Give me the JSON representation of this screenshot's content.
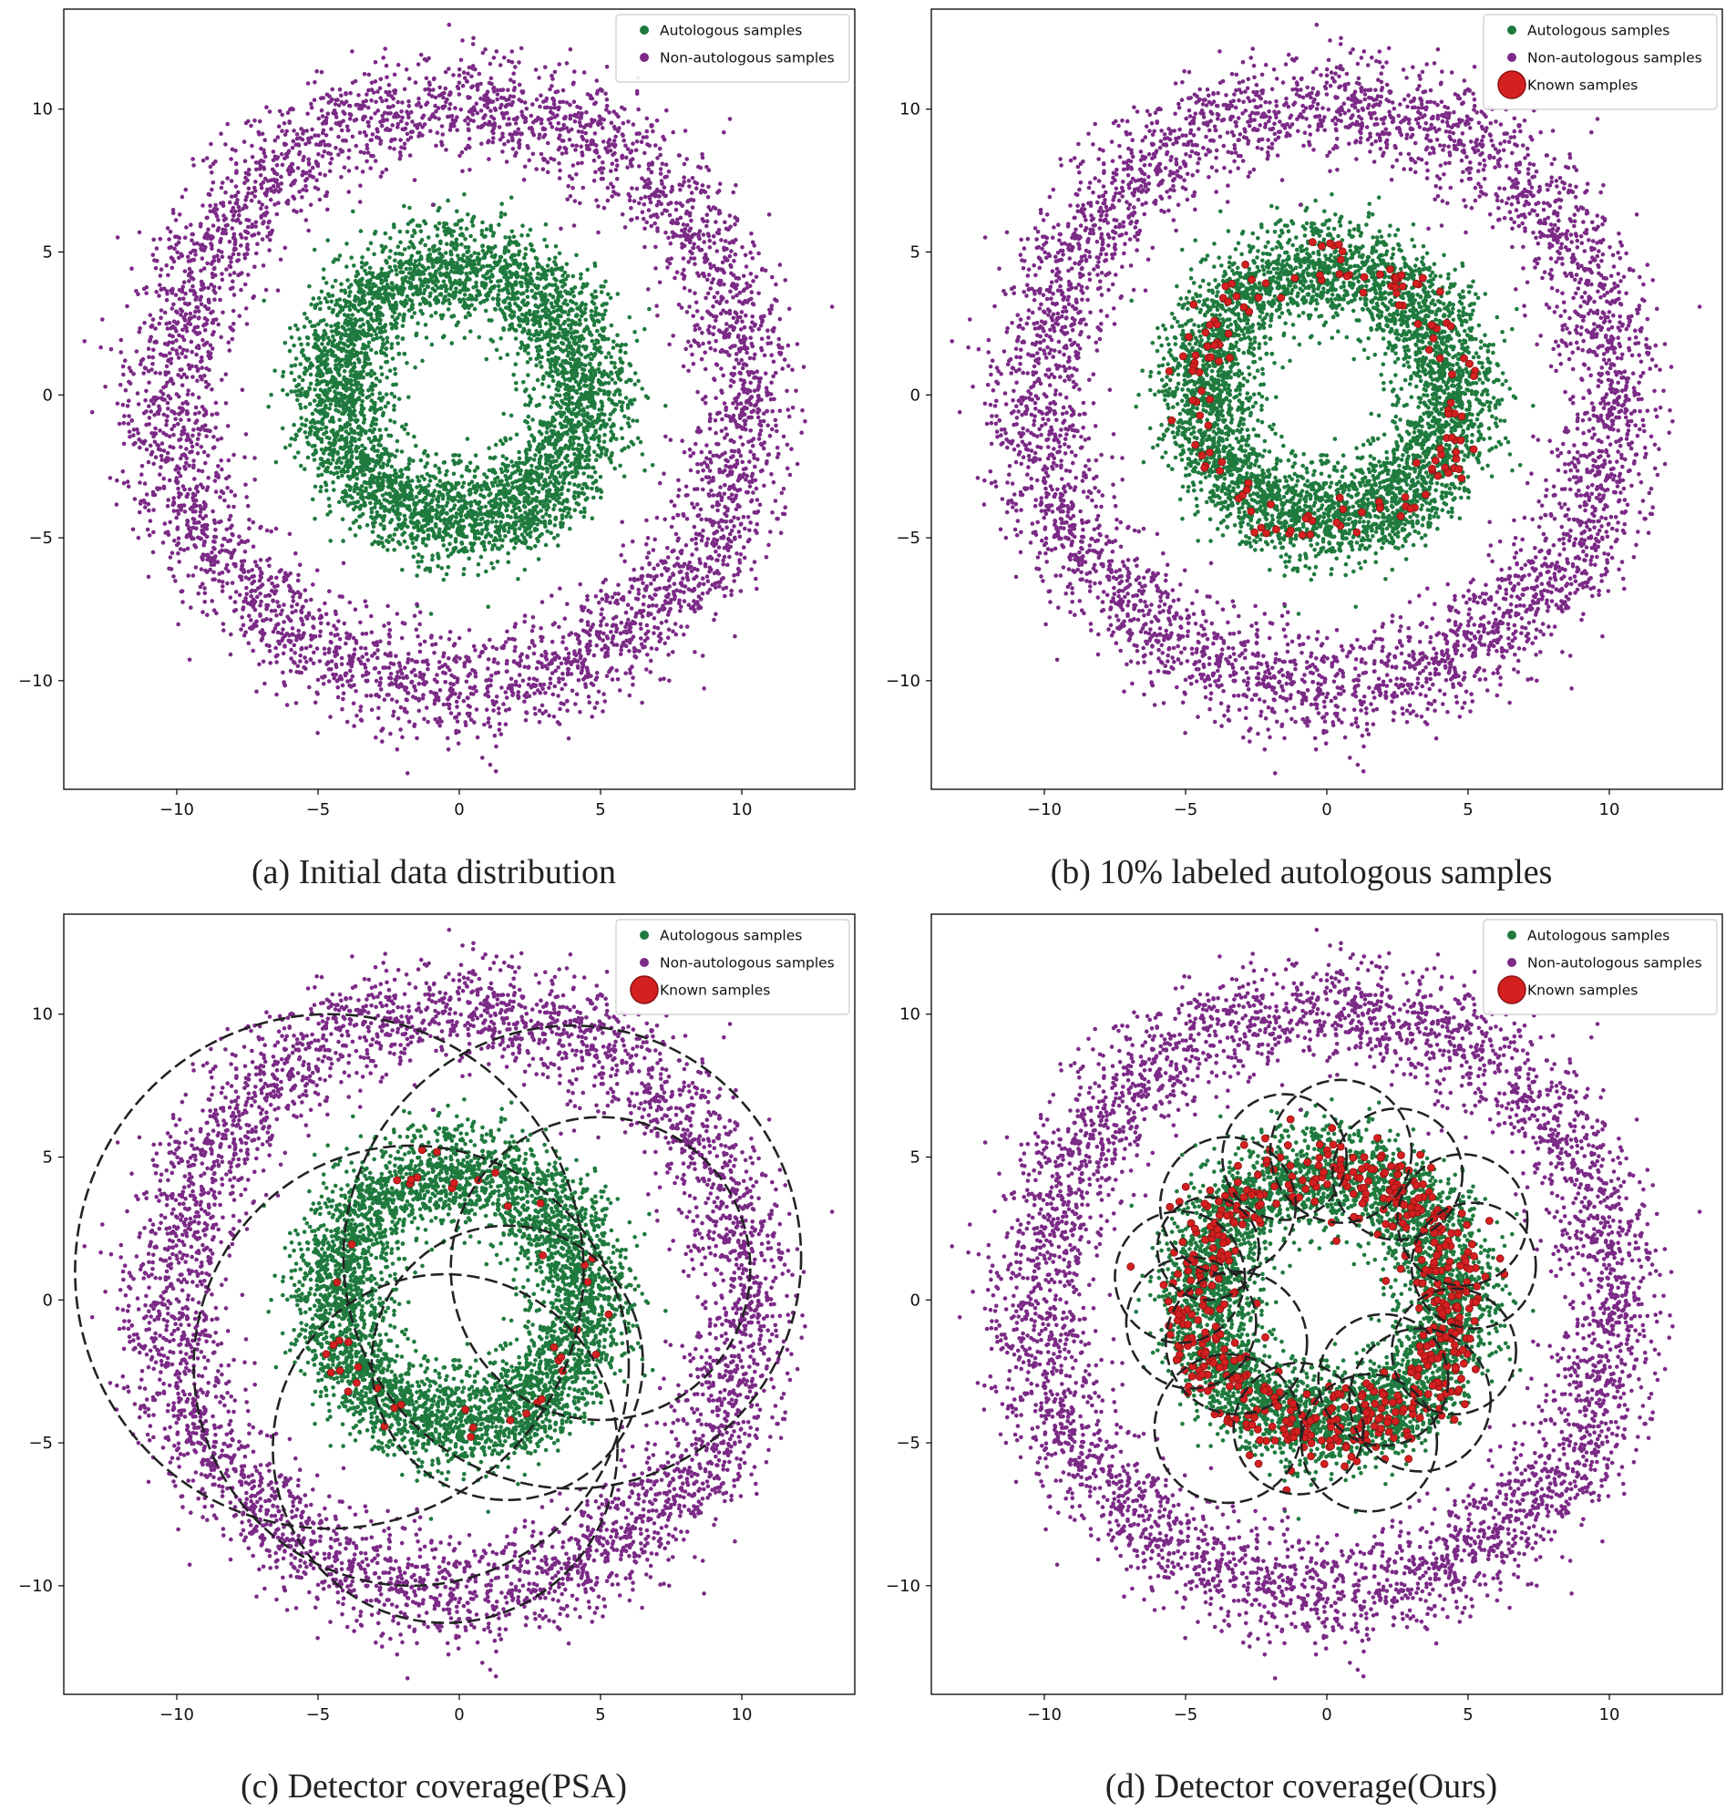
{
  "colors": {
    "autologous": "#1f7a3e",
    "nonautologous": "#7b2a86",
    "known": "#d42020",
    "known_edge": "#8a1010",
    "detector": "#222222",
    "axes": "#000000"
  },
  "chart_data": [
    {
      "type": "scatter",
      "panel": "a",
      "caption": "(a) Initial data distribution",
      "xlim": [
        -14,
        14
      ],
      "ylim": [
        -13.8,
        13.5
      ],
      "xticks": [
        -10,
        -5,
        0,
        5,
        10
      ],
      "xtick_labels": [
        "−10",
        "−5",
        "0",
        "5",
        "10"
      ],
      "yticks": [
        -10,
        -5,
        0,
        5,
        10
      ],
      "ytick_labels": [
        "−10",
        "−5",
        "0",
        "5",
        "10"
      ],
      "legend": [
        "Autologous samples",
        "Non-autologous samples"
      ],
      "legend_position": "top-right",
      "series": [
        {
          "name": "Autologous samples",
          "distribution": "ring",
          "center": [
            0,
            0
          ],
          "radius_mean": 4.5,
          "radius_sd": 0.9,
          "count": 4500
        },
        {
          "name": "Non-autologous samples",
          "distribution": "ring",
          "center": [
            0,
            0
          ],
          "radius_mean": 10.2,
          "radius_sd": 0.95,
          "count": 4500
        }
      ]
    },
    {
      "type": "scatter",
      "panel": "b",
      "caption": "(b) 10% labeled autologous samples",
      "xlim": [
        -14,
        14
      ],
      "ylim": [
        -13.8,
        13.5
      ],
      "xticks": [
        -10,
        -5,
        0,
        5,
        10
      ],
      "xtick_labels": [
        "−10",
        "−5",
        "0",
        "5",
        "10"
      ],
      "yticks": [
        -10,
        -5,
        0,
        5,
        10
      ],
      "ytick_labels": [
        "−10",
        "−5",
        "0",
        "5",
        "10"
      ],
      "legend": [
        "Autologous samples",
        "Non-autologous samples",
        "Known samples"
      ],
      "legend_position": "top-right",
      "series": [
        {
          "name": "Autologous samples",
          "distribution": "ring",
          "center": [
            0,
            0
          ],
          "radius_mean": 4.5,
          "radius_sd": 0.9,
          "count": 4500
        },
        {
          "name": "Non-autologous samples",
          "distribution": "ring",
          "center": [
            0,
            0
          ],
          "radius_mean": 10.2,
          "radius_sd": 0.95,
          "count": 4500
        },
        {
          "name": "Known samples",
          "distribution": "ring",
          "center": [
            0,
            0
          ],
          "radius_mean": 4.6,
          "radius_sd": 0.5,
          "count": 150
        }
      ]
    },
    {
      "type": "scatter",
      "panel": "c",
      "caption": "(c) Detector coverage(PSA)",
      "xlim": [
        -14,
        14
      ],
      "ylim": [
        -13.8,
        13.5
      ],
      "xticks": [
        -10,
        -5,
        0,
        5,
        10
      ],
      "xtick_labels": [
        "−10",
        "−5",
        "0",
        "5",
        "10"
      ],
      "yticks": [
        -10,
        -5,
        0,
        5,
        10
      ],
      "ytick_labels": [
        "−10",
        "−5",
        "0",
        "5",
        "10"
      ],
      "legend": [
        "Autologous samples",
        "Non-autologous samples",
        "Known samples"
      ],
      "legend_position": "top-right",
      "series": [
        {
          "name": "Autologous samples",
          "distribution": "ring",
          "center": [
            0,
            0
          ],
          "radius_mean": 4.5,
          "radius_sd": 0.9,
          "count": 4500
        },
        {
          "name": "Non-autologous samples",
          "distribution": "ring",
          "center": [
            0,
            0
          ],
          "radius_mean": 10.2,
          "radius_sd": 0.95,
          "count": 4500
        },
        {
          "name": "Known samples",
          "distribution": "ring",
          "center": [
            0,
            0
          ],
          "radius_mean": 4.6,
          "radius_sd": 0.5,
          "count": 45
        }
      ],
      "detectors": [
        {
          "cx": 4.0,
          "cy": 1.5,
          "r": 8.1
        },
        {
          "cx": -4.6,
          "cy": 1.0,
          "r": 9.0
        },
        {
          "cx": -1.7,
          "cy": -2.3,
          "r": 7.7
        },
        {
          "cx": -0.5,
          "cy": -5.2,
          "r": 6.1
        },
        {
          "cx": 5.0,
          "cy": 1.1,
          "r": 5.3
        },
        {
          "cx": 1.7,
          "cy": -2.2,
          "r": 4.8
        }
      ]
    },
    {
      "type": "scatter",
      "panel": "d",
      "caption": "(d) Detector coverage(Ours)",
      "xlim": [
        -14,
        14
      ],
      "ylim": [
        -13.8,
        13.5
      ],
      "xticks": [
        -10,
        -5,
        0,
        5,
        10
      ],
      "xtick_labels": [
        "−10",
        "−5",
        "0",
        "5",
        "10"
      ],
      "yticks": [
        -10,
        -5,
        0,
        5,
        10
      ],
      "ytick_labels": [
        "−10",
        "−5",
        "0",
        "5",
        "10"
      ],
      "legend": [
        "Autologous samples",
        "Non-autologous samples",
        "Known samples"
      ],
      "legend_position": "top-right",
      "series": [
        {
          "name": "Autologous samples",
          "distribution": "ring",
          "center": [
            0,
            0
          ],
          "radius_mean": 4.5,
          "radius_sd": 0.9,
          "count": 4500
        },
        {
          "name": "Non-autologous samples",
          "distribution": "ring",
          "center": [
            0,
            0
          ],
          "radius_mean": 10.2,
          "radius_sd": 0.95,
          "count": 4500
        },
        {
          "name": "Known samples",
          "distribution": "ring",
          "center": [
            0,
            0
          ],
          "radius_mean": 4.6,
          "radius_sd": 0.7,
          "count": 600
        }
      ],
      "detectors": [
        {
          "cx": -3.5,
          "cy": 3.3,
          "r": 2.4
        },
        {
          "cx": -1.5,
          "cy": 5.0,
          "r": 2.2
        },
        {
          "cx": 0.5,
          "cy": 5.2,
          "r": 2.5
        },
        {
          "cx": 2.5,
          "cy": 4.4,
          "r": 2.3
        },
        {
          "cx": 4.8,
          "cy": 2.8,
          "r": 2.3
        },
        {
          "cx": 5.2,
          "cy": 1.2,
          "r": 2.2
        },
        {
          "cx": -5.2,
          "cy": 0.8,
          "r": 2.3
        },
        {
          "cx": -4.8,
          "cy": -0.8,
          "r": 2.3
        },
        {
          "cx": -3.2,
          "cy": -1.5,
          "r": 2.5
        },
        {
          "cx": -3.5,
          "cy": -4.5,
          "r": 2.6
        },
        {
          "cx": -1.0,
          "cy": -4.5,
          "r": 2.3
        },
        {
          "cx": 1.5,
          "cy": -5.0,
          "r": 2.4
        },
        {
          "cx": 3.3,
          "cy": -3.5,
          "r": 2.5
        },
        {
          "cx": 4.5,
          "cy": -1.8,
          "r": 2.2
        },
        {
          "cx": -4.2,
          "cy": 1.8,
          "r": 1.8
        },
        {
          "cx": 2.0,
          "cy": -2.8,
          "r": 2.3
        }
      ]
    }
  ]
}
